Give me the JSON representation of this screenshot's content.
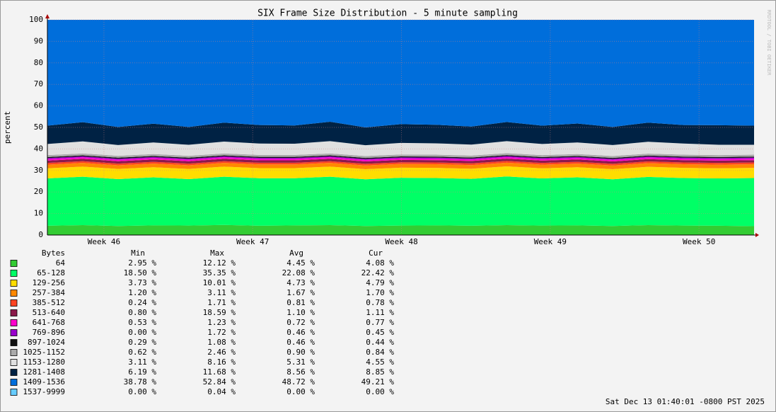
{
  "chart_data": {
    "type": "stacked_area",
    "title": "SIX Frame Size Distribution - 5 minute sampling",
    "y_label": "percent",
    "watermark": "RRDTOOL / TOBI OETIKER",
    "timestamp": "Sat Dec 13 01:40:01 -0800 PST 2025",
    "legend_columns": [
      "Bytes",
      "Min",
      "Max",
      "Avg",
      "Cur"
    ],
    "grid": true,
    "xlim": [
      45.62,
      50.37
    ],
    "xticks": [
      {
        "value": 46,
        "label": "Week 46"
      },
      {
        "value": 47,
        "label": "Week 47"
      },
      {
        "value": 48,
        "label": "Week 48"
      },
      {
        "value": 49,
        "label": "Week 49"
      },
      {
        "value": 50,
        "label": "Week 50"
      }
    ],
    "ylim": [
      0,
      100
    ],
    "yticks": [
      0,
      10,
      20,
      30,
      40,
      50,
      60,
      70,
      80,
      90,
      100
    ],
    "x": [
      45.62,
      45.8575,
      46.095,
      46.3325,
      46.57,
      46.8075,
      47.045,
      47.2825,
      47.52,
      47.7575,
      47.995,
      48.2325,
      48.47,
      48.7075,
      48.945,
      49.1825,
      49.42,
      49.6575,
      49.895,
      50.1325,
      50.37
    ],
    "series": [
      {
        "name": "64",
        "color": "#33cc33",
        "stats": [
          "2.95 %",
          "12.12 %",
          "4.45 %",
          "4.08 %"
        ],
        "values": [
          4.3,
          4.6,
          4.2,
          4.5,
          4.4,
          4.7,
          4.3,
          4.5,
          4.6,
          4.2,
          4.4,
          4.5,
          4.3,
          4.6,
          4.4,
          4.5,
          4.2,
          4.6,
          4.4,
          4.3,
          4.1
        ]
      },
      {
        "name": "65-128",
        "color": "#00ff66",
        "stats": [
          "18.50 %",
          "35.35 %",
          "22.08 %",
          "22.42 %"
        ],
        "values": [
          22.0,
          22.5,
          21.8,
          22.3,
          21.6,
          22.4,
          22.1,
          21.9,
          22.5,
          21.7,
          22.2,
          22.0,
          21.8,
          22.6,
          21.9,
          22.3,
          21.7,
          22.4,
          22.1,
          22.0,
          22.4
        ]
      },
      {
        "name": "129-256",
        "color": "#ffdd00",
        "stats": [
          "3.73 %",
          "10.01 %",
          "4.73 %",
          "4.79 %"
        ],
        "values": [
          4.7,
          4.7,
          4.7,
          4.7,
          4.7,
          4.7,
          4.7,
          4.7,
          4.7,
          4.7,
          4.7,
          4.7,
          4.7,
          4.7,
          4.7,
          4.7,
          4.7,
          4.7,
          4.7,
          4.7,
          4.7
        ]
      },
      {
        "name": "257-384",
        "color": "#ff8800",
        "stats": [
          "1.20 %",
          "3.11 %",
          "1.67 %",
          "1.70 %"
        ],
        "values": [
          1.7,
          1.7,
          1.7,
          1.7,
          1.7,
          1.7,
          1.7,
          1.7,
          1.7,
          1.7,
          1.7,
          1.7,
          1.7,
          1.7,
          1.7,
          1.7,
          1.7,
          1.7,
          1.7,
          1.7,
          1.7
        ]
      },
      {
        "name": "385-512",
        "color": "#ff4422",
        "stats": [
          "0.24 %",
          "1.71 %",
          "0.81 %",
          "0.78 %"
        ],
        "values": [
          0.8,
          0.8,
          0.8,
          0.8,
          0.8,
          0.8,
          0.8,
          0.8,
          0.8,
          0.8,
          0.8,
          0.8,
          0.8,
          0.8,
          0.8,
          0.8,
          0.8,
          0.8,
          0.8,
          0.8,
          0.8
        ]
      },
      {
        "name": "513-640",
        "color": "#8b1a4a",
        "stats": [
          "0.80 %",
          "18.59 %",
          "1.10 %",
          "1.11 %"
        ],
        "values": [
          1.1,
          1.1,
          1.1,
          1.1,
          1.1,
          1.1,
          1.1,
          1.1,
          1.1,
          1.1,
          1.1,
          1.1,
          1.1,
          1.1,
          1.1,
          1.1,
          1.1,
          1.1,
          1.1,
          1.1,
          1.1
        ]
      },
      {
        "name": "641-768",
        "color": "#ff00cc",
        "stats": [
          "0.53 %",
          "1.23 %",
          "0.72 %",
          "0.77 %"
        ],
        "values": [
          0.7,
          0.7,
          0.7,
          0.7,
          0.7,
          0.7,
          0.7,
          0.7,
          0.7,
          0.7,
          0.7,
          0.7,
          0.7,
          0.7,
          0.7,
          0.7,
          0.7,
          0.7,
          0.7,
          0.7,
          0.7
        ]
      },
      {
        "name": "769-896",
        "color": "#9900cc",
        "stats": [
          "0.00 %",
          "1.72 %",
          "0.46 %",
          "0.45 %"
        ],
        "values": [
          0.46,
          0.46,
          0.46,
          0.46,
          0.46,
          0.46,
          0.46,
          0.46,
          0.46,
          0.46,
          0.46,
          0.46,
          0.46,
          0.46,
          0.46,
          0.46,
          0.46,
          0.46,
          0.46,
          0.46,
          0.46
        ]
      },
      {
        "name": "897-1024",
        "color": "#111111",
        "stats": [
          "0.29 %",
          "1.08 %",
          "0.46 %",
          "0.44 %"
        ],
        "values": [
          0.46,
          0.46,
          0.46,
          0.46,
          0.46,
          0.46,
          0.46,
          0.46,
          0.46,
          0.46,
          0.46,
          0.46,
          0.46,
          0.46,
          0.46,
          0.46,
          0.46,
          0.46,
          0.46,
          0.46,
          0.46
        ]
      },
      {
        "name": "1025-1152",
        "color": "#aaaaaa",
        "stats": [
          "0.62 %",
          "2.46 %",
          "0.90 %",
          "0.84 %"
        ],
        "values": [
          0.9,
          0.9,
          0.9,
          0.9,
          0.9,
          0.9,
          0.9,
          0.9,
          0.9,
          0.9,
          0.9,
          0.9,
          0.9,
          0.9,
          0.9,
          0.9,
          0.9,
          0.9,
          0.9,
          0.9,
          0.9
        ]
      },
      {
        "name": "1153-1280",
        "color": "#e0e0e0",
        "stats": [
          "3.11 %",
          "8.16 %",
          "5.31 %",
          "4.55 %"
        ],
        "values": [
          5.2,
          5.6,
          5.0,
          5.4,
          5.1,
          5.5,
          5.3,
          5.2,
          5.7,
          5.0,
          5.4,
          5.3,
          5.1,
          5.6,
          5.2,
          5.4,
          5.1,
          5.5,
          5.2,
          4.8,
          4.6
        ]
      },
      {
        "name": "1281-1408",
        "color": "#002244",
        "stats": [
          "6.19 %",
          "11.68 %",
          "8.56 %",
          "8.85 %"
        ],
        "values": [
          8.5,
          8.9,
          8.4,
          8.7,
          8.3,
          8.8,
          8.6,
          8.5,
          9.0,
          8.3,
          8.7,
          8.6,
          8.4,
          8.9,
          8.5,
          8.8,
          8.4,
          8.9,
          8.6,
          9.1,
          8.9
        ]
      },
      {
        "name": "1409-1536",
        "color": "#006edb",
        "stats": [
          "38.78 %",
          "52.84 %",
          "48.72 %",
          "49.21 %"
        ],
        "values": [
          49.18,
          47.58,
          49.78,
          48.28,
          49.78,
          47.78,
          48.88,
          49.08,
          47.38,
          49.98,
          48.48,
          48.78,
          49.58,
          47.48,
          49.18,
          48.18,
          49.78,
          47.78,
          48.88,
          48.98,
          49.18
        ]
      },
      {
        "name": "1537-9999",
        "color": "#66ccff",
        "stats": [
          "0.00 %",
          "0.04 %",
          "0.00 %",
          "0.00 %"
        ],
        "values": [
          0,
          0,
          0,
          0,
          0,
          0,
          0,
          0,
          0,
          0,
          0,
          0,
          0,
          0,
          0,
          0,
          0,
          0,
          0,
          0,
          0
        ]
      }
    ]
  }
}
